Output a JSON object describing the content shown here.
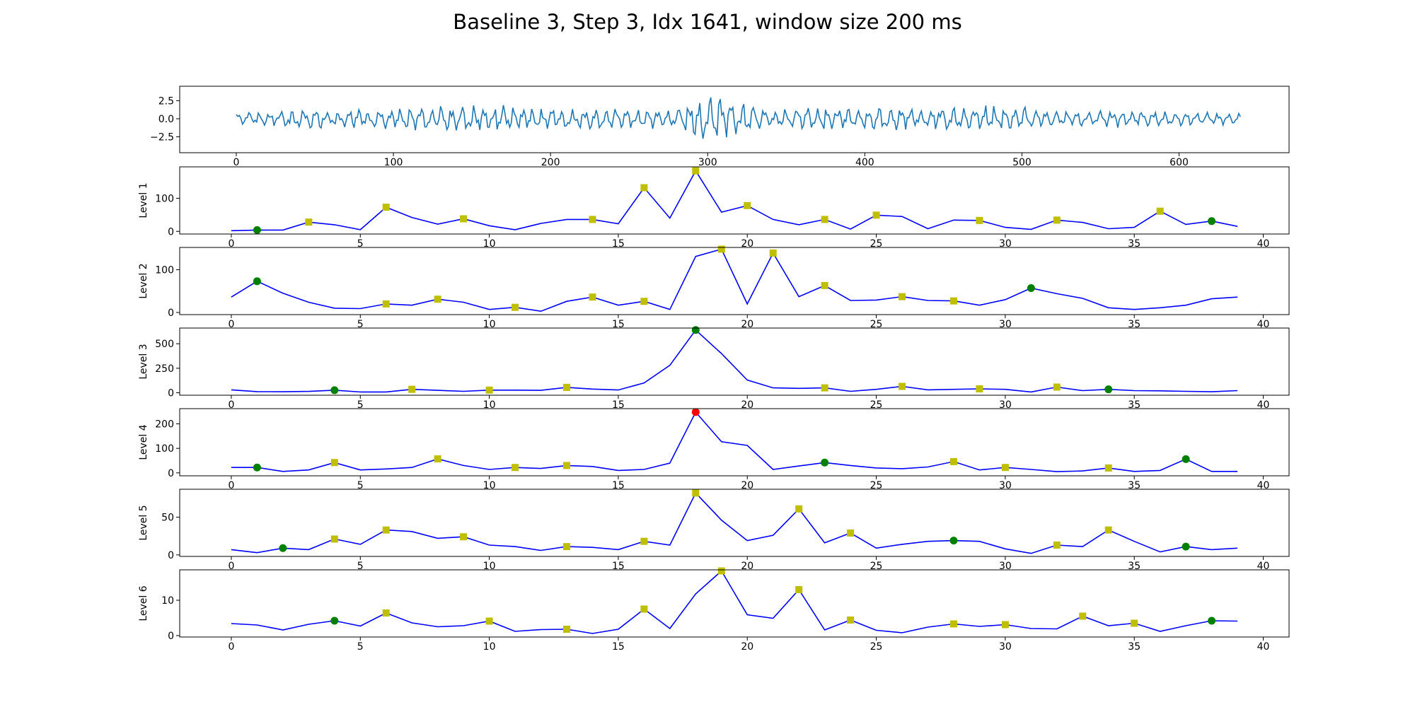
{
  "title": "Baseline 3, Step 3, Idx 1641, window size 200 ms",
  "colors": {
    "signal": "#1f77b4",
    "level_line": "#0000ff",
    "marker_yellow": "#bfbf00",
    "marker_green": "#008000",
    "marker_red": "#ff0000"
  },
  "chart_data": [
    {
      "type": "line",
      "ylabel": "",
      "xlim": [
        -36,
        670
      ],
      "ylim": [
        -4.7,
        4.5
      ],
      "xticks": [
        0,
        100,
        200,
        300,
        400,
        500,
        600
      ],
      "xtick_labels": [
        "0",
        "100",
        "200",
        "300",
        "400",
        "500",
        "600"
      ],
      "yticks": [
        2.5,
        0.0,
        -2.5
      ],
      "ytick_labels": [
        "2.5",
        "0.0",
        "−2.5"
      ],
      "signal_length": 640,
      "signal_envelope": [
        [
          0,
          1.0
        ],
        [
          20,
          1.1
        ],
        [
          40,
          1.8
        ],
        [
          60,
          1.4
        ],
        [
          100,
          1.6
        ],
        [
          150,
          2.3
        ],
        [
          200,
          1.8
        ],
        [
          230,
          1.8
        ],
        [
          260,
          1.6
        ],
        [
          280,
          1.6
        ],
        [
          290,
          2.8
        ],
        [
          300,
          4.0
        ],
        [
          310,
          3.6
        ],
        [
          320,
          3.2
        ],
        [
          330,
          2.2
        ],
        [
          345,
          1.5
        ],
        [
          360,
          1.8
        ],
        [
          370,
          2.0
        ],
        [
          390,
          1.5
        ],
        [
          410,
          2.0
        ],
        [
          440,
          1.5
        ],
        [
          470,
          2.2
        ],
        [
          500,
          1.8
        ],
        [
          530,
          1.2
        ],
        [
          560,
          1.3
        ],
        [
          590,
          1.2
        ],
        [
          620,
          1.0
        ],
        [
          640,
          0.9
        ]
      ]
    },
    {
      "type": "line",
      "ylabel": "Level 1",
      "xlim": [
        -2,
        41
      ],
      "ylim": [
        -8,
        195
      ],
      "xticks": [
        0,
        5,
        10,
        15,
        20,
        25,
        30,
        35,
        40
      ],
      "xtick_labels": [
        "0",
        "5",
        "10",
        "15",
        "20",
        "25",
        "30",
        "35",
        "40"
      ],
      "yticks": [
        0,
        100
      ],
      "ytick_labels": [
        "0",
        "100"
      ],
      "x": [
        0,
        1,
        2,
        3,
        4,
        5,
        6,
        7,
        8,
        9,
        10,
        11,
        12,
        13,
        14,
        15,
        16,
        17,
        18,
        19,
        20,
        21,
        22,
        23,
        24,
        25,
        26,
        27,
        28,
        29,
        30,
        31,
        32,
        33,
        34,
        35,
        36,
        37,
        38,
        39
      ],
      "values": [
        2,
        4,
        4,
        28,
        20,
        5,
        73,
        42,
        22,
        38,
        17,
        5,
        24,
        36,
        36,
        23,
        132,
        40,
        183,
        58,
        78,
        36,
        20,
        36,
        7,
        49,
        45,
        8,
        34,
        33,
        12,
        6,
        34,
        27,
        8,
        12,
        61,
        21,
        31,
        15
      ],
      "markers": [
        {
          "x": 1,
          "y": 4,
          "color": "green"
        },
        {
          "x": 3,
          "y": 28,
          "color": "yellow"
        },
        {
          "x": 6,
          "y": 73,
          "color": "yellow"
        },
        {
          "x": 9,
          "y": 38,
          "color": "yellow"
        },
        {
          "x": 14,
          "y": 36,
          "color": "yellow"
        },
        {
          "x": 16,
          "y": 132,
          "color": "yellow"
        },
        {
          "x": 18,
          "y": 183,
          "color": "yellow"
        },
        {
          "x": 20,
          "y": 78,
          "color": "yellow"
        },
        {
          "x": 23,
          "y": 36,
          "color": "yellow"
        },
        {
          "x": 25,
          "y": 49,
          "color": "yellow"
        },
        {
          "x": 29,
          "y": 33,
          "color": "yellow"
        },
        {
          "x": 32,
          "y": 34,
          "color": "yellow"
        },
        {
          "x": 36,
          "y": 61,
          "color": "yellow"
        },
        {
          "x": 38,
          "y": 31,
          "color": "green"
        }
      ]
    },
    {
      "type": "line",
      "ylabel": "Level 2",
      "xlim": [
        -2,
        41
      ],
      "ylim": [
        -5,
        152
      ],
      "xticks": [
        0,
        5,
        10,
        15,
        20,
        25,
        30,
        35,
        40
      ],
      "xtick_labels": [
        "0",
        "5",
        "10",
        "15",
        "20",
        "25",
        "30",
        "35",
        "40"
      ],
      "yticks": [
        0,
        100
      ],
      "ytick_labels": [
        "0",
        "100"
      ],
      "x": [
        0,
        1,
        2,
        3,
        4,
        5,
        6,
        7,
        8,
        9,
        10,
        11,
        12,
        13,
        14,
        15,
        16,
        17,
        18,
        19,
        20,
        21,
        22,
        23,
        24,
        25,
        26,
        27,
        28,
        29,
        30,
        31,
        32,
        33,
        34,
        35,
        36,
        37,
        38,
        39
      ],
      "values": [
        36,
        73,
        45,
        24,
        10,
        9,
        20,
        17,
        31,
        24,
        7,
        12,
        3,
        26,
        36,
        17,
        26,
        7,
        131,
        148,
        20,
        139,
        37,
        63,
        28,
        29,
        37,
        28,
        27,
        17,
        30,
        57,
        44,
        33,
        11,
        7,
        11,
        17,
        32,
        36
      ],
      "markers": [
        {
          "x": 1,
          "y": 73,
          "color": "green"
        },
        {
          "x": 6,
          "y": 20,
          "color": "yellow"
        },
        {
          "x": 8,
          "y": 31,
          "color": "yellow"
        },
        {
          "x": 11,
          "y": 12,
          "color": "yellow"
        },
        {
          "x": 14,
          "y": 36,
          "color": "yellow"
        },
        {
          "x": 16,
          "y": 26,
          "color": "yellow"
        },
        {
          "x": 19,
          "y": 148,
          "color": "yellow"
        },
        {
          "x": 21,
          "y": 139,
          "color": "yellow"
        },
        {
          "x": 23,
          "y": 63,
          "color": "yellow"
        },
        {
          "x": 26,
          "y": 37,
          "color": "yellow"
        },
        {
          "x": 28,
          "y": 27,
          "color": "yellow"
        },
        {
          "x": 31,
          "y": 57,
          "color": "green"
        }
      ]
    },
    {
      "type": "line",
      "ylabel": "Level 3",
      "xlim": [
        -2,
        41
      ],
      "ylim": [
        -25,
        660
      ],
      "xticks": [
        0,
        5,
        10,
        15,
        20,
        25,
        30,
        35,
        40
      ],
      "xtick_labels": [
        "0",
        "5",
        "10",
        "15",
        "20",
        "25",
        "30",
        "35",
        "40"
      ],
      "yticks": [
        0,
        250,
        500
      ],
      "ytick_labels": [
        "0",
        "250",
        "500"
      ],
      "x": [
        0,
        1,
        2,
        3,
        4,
        5,
        6,
        7,
        8,
        9,
        10,
        11,
        12,
        13,
        14,
        15,
        16,
        17,
        18,
        19,
        20,
        21,
        22,
        23,
        24,
        25,
        26,
        27,
        28,
        29,
        30,
        31,
        32,
        33,
        34,
        35,
        36,
        37,
        38,
        39
      ],
      "values": [
        30,
        12,
        10,
        14,
        26,
        8,
        8,
        35,
        25,
        15,
        27,
        27,
        25,
        55,
        38,
        28,
        100,
        280,
        640,
        400,
        130,
        50,
        45,
        50,
        15,
        35,
        65,
        30,
        35,
        40,
        35,
        8,
        58,
        22,
        35,
        22,
        20,
        15,
        10,
        22
      ],
      "markers": [
        {
          "x": 4,
          "y": 26,
          "color": "green"
        },
        {
          "x": 7,
          "y": 35,
          "color": "yellow"
        },
        {
          "x": 10,
          "y": 27,
          "color": "yellow"
        },
        {
          "x": 13,
          "y": 55,
          "color": "yellow"
        },
        {
          "x": 18,
          "y": 640,
          "color": "green"
        },
        {
          "x": 23,
          "y": 50,
          "color": "yellow"
        },
        {
          "x": 26,
          "y": 65,
          "color": "yellow"
        },
        {
          "x": 29,
          "y": 40,
          "color": "yellow"
        },
        {
          "x": 32,
          "y": 58,
          "color": "yellow"
        },
        {
          "x": 34,
          "y": 35,
          "color": "green"
        }
      ]
    },
    {
      "type": "line",
      "ylabel": "Level 4",
      "xlim": [
        -2,
        41
      ],
      "ylim": [
        -12,
        262
      ],
      "xticks": [
        0,
        5,
        10,
        15,
        20,
        25,
        30,
        35,
        40
      ],
      "xtick_labels": [
        "0",
        "5",
        "10",
        "15",
        "20",
        "25",
        "30",
        "35",
        "40"
      ],
      "yticks": [
        0,
        100,
        200
      ],
      "ytick_labels": [
        "0",
        "100",
        "200"
      ],
      "x": [
        0,
        1,
        2,
        3,
        4,
        5,
        6,
        7,
        8,
        9,
        10,
        11,
        12,
        13,
        14,
        15,
        16,
        17,
        18,
        19,
        20,
        21,
        22,
        23,
        24,
        25,
        26,
        27,
        28,
        29,
        30,
        31,
        32,
        33,
        34,
        35,
        36,
        37,
        38,
        39
      ],
      "values": [
        22,
        22,
        6,
        12,
        42,
        12,
        16,
        22,
        57,
        30,
        14,
        22,
        18,
        30,
        26,
        10,
        14,
        40,
        248,
        127,
        112,
        14,
        28,
        42,
        30,
        20,
        17,
        24,
        46,
        12,
        22,
        14,
        5,
        8,
        20,
        6,
        10,
        56,
        6,
        6
      ],
      "markers": [
        {
          "x": 1,
          "y": 22,
          "color": "green"
        },
        {
          "x": 4,
          "y": 42,
          "color": "yellow"
        },
        {
          "x": 8,
          "y": 57,
          "color": "yellow"
        },
        {
          "x": 11,
          "y": 22,
          "color": "yellow"
        },
        {
          "x": 13,
          "y": 30,
          "color": "yellow"
        },
        {
          "x": 18,
          "y": 248,
          "color": "red"
        },
        {
          "x": 23,
          "y": 42,
          "color": "green"
        },
        {
          "x": 28,
          "y": 46,
          "color": "yellow"
        },
        {
          "x": 30,
          "y": 22,
          "color": "yellow"
        },
        {
          "x": 34,
          "y": 20,
          "color": "yellow"
        },
        {
          "x": 37,
          "y": 56,
          "color": "green"
        }
      ]
    },
    {
      "type": "line",
      "ylabel": "Level 5",
      "xlim": [
        -2,
        41
      ],
      "ylim": [
        -2,
        87
      ],
      "xticks": [
        0,
        5,
        10,
        15,
        20,
        25,
        30,
        35,
        40
      ],
      "xtick_labels": [
        "0",
        "5",
        "10",
        "15",
        "20",
        "25",
        "30",
        "35",
        "40"
      ],
      "yticks": [
        0,
        50
      ],
      "ytick_labels": [
        "0",
        "50"
      ],
      "x": [
        0,
        1,
        2,
        3,
        4,
        5,
        6,
        7,
        8,
        9,
        10,
        11,
        12,
        13,
        14,
        15,
        16,
        17,
        18,
        19,
        20,
        21,
        22,
        23,
        24,
        25,
        26,
        27,
        28,
        29,
        30,
        31,
        32,
        33,
        34,
        35,
        36,
        37,
        38,
        39
      ],
      "values": [
        7,
        3,
        9,
        7,
        21,
        14,
        33,
        31,
        22,
        24,
        13,
        11,
        6,
        11,
        10,
        7,
        18,
        13,
        82,
        46,
        19,
        26,
        61,
        16,
        29,
        9,
        14,
        18,
        19,
        18,
        8,
        2,
        13,
        11,
        33,
        18,
        4,
        11,
        7,
        9
      ],
      "markers": [
        {
          "x": 2,
          "y": 9,
          "color": "green"
        },
        {
          "x": 4,
          "y": 21,
          "color": "yellow"
        },
        {
          "x": 6,
          "y": 33,
          "color": "yellow"
        },
        {
          "x": 9,
          "y": 24,
          "color": "yellow"
        },
        {
          "x": 13,
          "y": 11,
          "color": "yellow"
        },
        {
          "x": 16,
          "y": 18,
          "color": "yellow"
        },
        {
          "x": 18,
          "y": 82,
          "color": "yellow"
        },
        {
          "x": 22,
          "y": 61,
          "color": "yellow"
        },
        {
          "x": 24,
          "y": 29,
          "color": "yellow"
        },
        {
          "x": 28,
          "y": 19,
          "color": "green"
        },
        {
          "x": 32,
          "y": 13,
          "color": "yellow"
        },
        {
          "x": 34,
          "y": 33,
          "color": "yellow"
        },
        {
          "x": 37,
          "y": 11,
          "color": "green"
        }
      ]
    },
    {
      "type": "line",
      "ylabel": "Level 6",
      "xlim": [
        -2,
        41
      ],
      "ylim": [
        -0.4,
        18.6
      ],
      "xticks": [
        0,
        5,
        10,
        15,
        20,
        25,
        30,
        35,
        40
      ],
      "xtick_labels": [
        "0",
        "5",
        "10",
        "15",
        "20",
        "25",
        "30",
        "35",
        "40"
      ],
      "yticks": [
        0,
        10
      ],
      "ytick_labels": [
        "0",
        "10"
      ],
      "x": [
        0,
        1,
        2,
        3,
        4,
        5,
        6,
        7,
        8,
        9,
        10,
        11,
        12,
        13,
        14,
        15,
        16,
        17,
        18,
        19,
        20,
        21,
        22,
        23,
        24,
        25,
        26,
        27,
        28,
        29,
        30,
        31,
        32,
        33,
        34,
        35,
        36,
        37,
        38,
        39
      ],
      "values": [
        3.4,
        3.0,
        1.6,
        3.2,
        4.2,
        2.7,
        6.4,
        3.6,
        2.5,
        2.8,
        4.1,
        1.2,
        1.7,
        1.8,
        0.6,
        1.8,
        7.5,
        2.0,
        11.8,
        18.3,
        5.9,
        4.9,
        13.0,
        1.6,
        4.4,
        1.5,
        0.8,
        2.4,
        3.3,
        2.6,
        3.1,
        2.0,
        1.9,
        5.5,
        2.8,
        3.5,
        1.2,
        2.8,
        4.2,
        4.1
      ],
      "markers": [
        {
          "x": 4,
          "y": 4.2,
          "color": "green"
        },
        {
          "x": 6,
          "y": 6.4,
          "color": "yellow"
        },
        {
          "x": 10,
          "y": 4.1,
          "color": "yellow"
        },
        {
          "x": 13,
          "y": 1.8,
          "color": "yellow"
        },
        {
          "x": 16,
          "y": 7.5,
          "color": "yellow"
        },
        {
          "x": 19,
          "y": 18.3,
          "color": "yellow"
        },
        {
          "x": 22,
          "y": 13.0,
          "color": "yellow"
        },
        {
          "x": 24,
          "y": 4.4,
          "color": "yellow"
        },
        {
          "x": 28,
          "y": 3.3,
          "color": "yellow"
        },
        {
          "x": 30,
          "y": 3.1,
          "color": "yellow"
        },
        {
          "x": 33,
          "y": 5.5,
          "color": "yellow"
        },
        {
          "x": 35,
          "y": 3.5,
          "color": "yellow"
        },
        {
          "x": 38,
          "y": 4.2,
          "color": "green"
        }
      ]
    }
  ]
}
